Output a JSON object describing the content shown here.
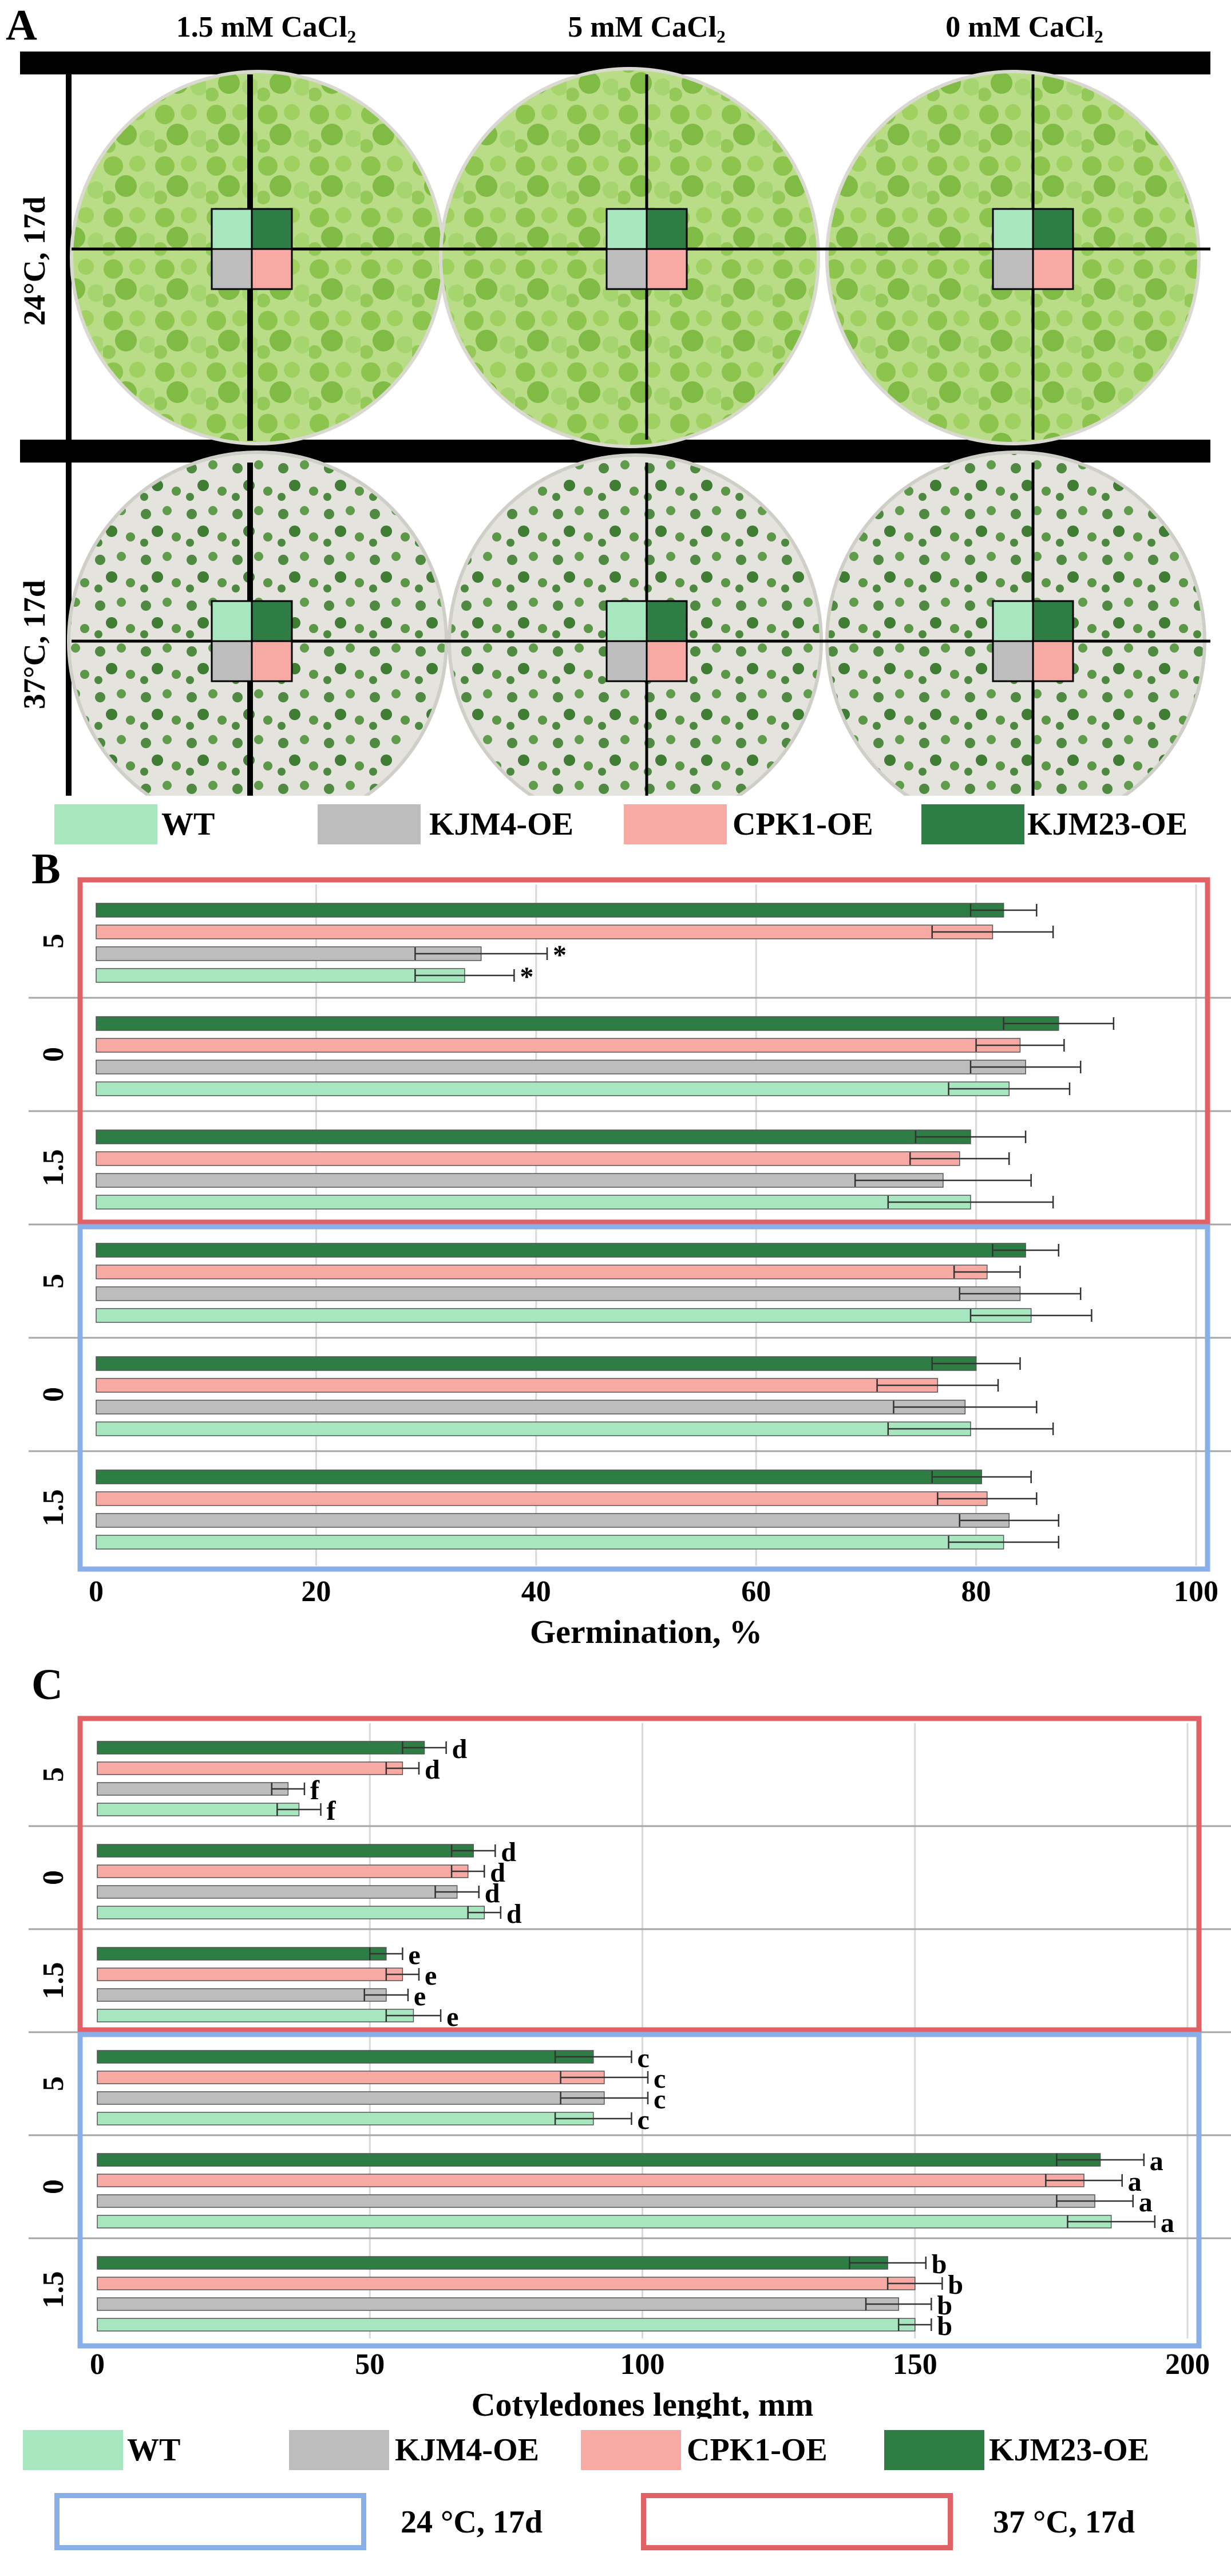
{
  "panel_a": {
    "letter": "A",
    "columns": [
      "1.5 mM CaCl₂",
      "5 mM CaCl₂",
      "0 mM CaCl₂"
    ],
    "rows": [
      "24°C, 17d",
      "37°C, 17d"
    ],
    "colors": {
      "plate_24": "#a8d36a",
      "plate_37": "#5f9a4c",
      "agar": "#e9e7df",
      "bar": "#000000"
    }
  },
  "legend_genotypes": [
    {
      "label": "WT",
      "color": "#a8e6bf"
    },
    {
      "label": "KJM4-OE",
      "color": "#bdbdbd"
    },
    {
      "label": "CPK1-OE",
      "color": "#f7aaa4"
    },
    {
      "label": "KJM23-OE",
      "color": "#2e7d45"
    }
  ],
  "legend_conditions": [
    {
      "label": "24 °C, 17d",
      "color": "#8aaee8"
    },
    {
      "label": "37 °C, 17d",
      "color": "#e06266"
    }
  ],
  "chart_data": [
    {
      "type": "bar",
      "orientation": "horizontal",
      "panel": "B",
      "xlabel": "Germination, %",
      "xlim": [
        0,
        100
      ],
      "xticks": [
        "0",
        "20",
        "40",
        "60",
        "80",
        "100"
      ],
      "tick_values": [
        0,
        20,
        40,
        60,
        80,
        100
      ],
      "series_order_top_to_bottom": [
        "KJM23-OE",
        "CPK1-OE",
        "KJM4-OE",
        "WT"
      ],
      "groups": [
        {
          "condition": "37 °C, 17d",
          "label": "5",
          "values": [
            82.5,
            81.5,
            35.0,
            33.5
          ],
          "errors": [
            3.0,
            5.5,
            6.0,
            4.5
          ],
          "marks": [
            "",
            "",
            "*",
            "*"
          ]
        },
        {
          "condition": "37 °C, 17d",
          "label": "0",
          "values": [
            87.5,
            84.0,
            84.5,
            83.0
          ],
          "errors": [
            5.0,
            4.0,
            5.0,
            5.5
          ],
          "marks": [
            "",
            "",
            "",
            ""
          ]
        },
        {
          "condition": "37 °C, 17d",
          "label": "1.5",
          "values": [
            79.5,
            78.5,
            77.0,
            79.5
          ],
          "errors": [
            5.0,
            4.5,
            8.0,
            7.5
          ],
          "marks": [
            "",
            "",
            "",
            ""
          ]
        },
        {
          "condition": "24 °C, 17d",
          "label": "5",
          "values": [
            84.5,
            81.0,
            84.0,
            85.0
          ],
          "errors": [
            3.0,
            3.0,
            5.5,
            5.5
          ],
          "marks": [
            "",
            "",
            "",
            ""
          ]
        },
        {
          "condition": "24 °C, 17d",
          "label": "0",
          "values": [
            80.0,
            76.5,
            79.0,
            79.5
          ],
          "errors": [
            4.0,
            5.5,
            6.5,
            7.5
          ],
          "marks": [
            "",
            "",
            "",
            ""
          ]
        },
        {
          "condition": "24 °C, 17d",
          "label": "1.5",
          "values": [
            80.5,
            81.0,
            83.0,
            82.5
          ],
          "errors": [
            4.5,
            4.5,
            4.5,
            5.0
          ],
          "marks": [
            "",
            "",
            "",
            ""
          ]
        }
      ]
    },
    {
      "type": "bar",
      "orientation": "horizontal",
      "panel": "C",
      "xlabel": "Cotyledones lenght, mm",
      "xlim": [
        0,
        200
      ],
      "xticks": [
        "0",
        "50",
        "100",
        "150",
        "200"
      ],
      "tick_values": [
        0,
        50,
        100,
        150,
        200
      ],
      "series_order_top_to_bottom": [
        "KJM23-OE",
        "CPK1-OE",
        "KJM4-OE",
        "WT"
      ],
      "groups": [
        {
          "condition": "37 °C, 17d",
          "label": "5",
          "values": [
            60,
            56,
            35,
            37
          ],
          "errors": [
            4,
            3,
            3,
            4
          ],
          "marks": [
            "d",
            "d",
            "f",
            "f"
          ]
        },
        {
          "condition": "37 °C, 17d",
          "label": "0",
          "values": [
            69,
            68,
            66,
            71
          ],
          "errors": [
            4,
            3,
            4,
            3
          ],
          "marks": [
            "d",
            "d",
            "d",
            "d"
          ]
        },
        {
          "condition": "37 °C, 17d",
          "label": "1.5",
          "values": [
            53,
            56,
            53,
            58
          ],
          "errors": [
            3,
            3,
            4,
            5
          ],
          "marks": [
            "e",
            "e",
            "e",
            "e"
          ]
        },
        {
          "condition": "24 °C, 17d",
          "label": "5",
          "values": [
            91,
            93,
            93,
            91
          ],
          "errors": [
            7,
            8,
            8,
            7
          ],
          "marks": [
            "c",
            "c",
            "c",
            "c"
          ]
        },
        {
          "condition": "24 °C, 17d",
          "label": "0",
          "values": [
            184,
            181,
            183,
            186
          ],
          "errors": [
            8,
            7,
            7,
            8
          ],
          "marks": [
            "a",
            "a",
            "a",
            "a"
          ]
        },
        {
          "condition": "24 °C, 17d",
          "label": "1.5",
          "values": [
            145,
            150,
            147,
            150
          ],
          "errors": [
            7,
            5,
            6,
            3
          ],
          "marks": [
            "b",
            "b",
            "b",
            "b"
          ]
        }
      ]
    }
  ]
}
